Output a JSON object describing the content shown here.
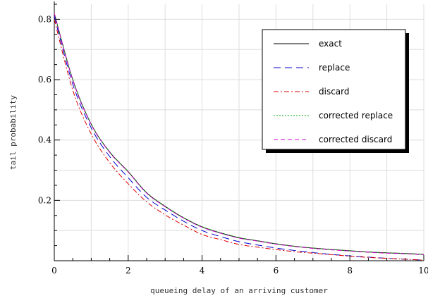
{
  "chart_data": {
    "type": "line",
    "title": "",
    "xlabel": "queueing delay of an arriving customer",
    "ylabel": "tail probability",
    "xlim": [
      0,
      10
    ],
    "ylim": [
      0,
      0.85
    ],
    "x_ticks": [
      0,
      2,
      4,
      6,
      8,
      10
    ],
    "y_ticks": [
      0.2,
      0.4,
      0.6,
      0.8
    ],
    "grid": true,
    "legend_position": "top-right",
    "x": [
      0,
      0.5,
      1,
      1.5,
      2,
      2.5,
      3,
      3.5,
      4,
      4.5,
      5,
      5.5,
      6,
      6.5,
      7,
      7.5,
      8,
      8.5,
      9,
      9.5,
      10
    ],
    "series": [
      {
        "name": "exact",
        "color": "#000000",
        "dash": "solid",
        "values": [
          0.82,
          0.6,
          0.452,
          0.36,
          0.295,
          0.225,
          0.18,
          0.142,
          0.112,
          0.092,
          0.076,
          0.066,
          0.056,
          0.048,
          0.042,
          0.037,
          0.033,
          0.029,
          0.026,
          0.024,
          0.021
        ]
      },
      {
        "name": "replace",
        "color": "#0000cc",
        "dash": "long-dash",
        "values": [
          0.81,
          0.585,
          0.44,
          0.345,
          0.275,
          0.21,
          0.168,
          0.131,
          0.1,
          0.08,
          0.063,
          0.052,
          0.042,
          0.034,
          0.027,
          0.021,
          0.016,
          0.012,
          0.008,
          0.005,
          0.002
        ]
      },
      {
        "name": "discard",
        "color": "#dd0000",
        "dash": "dash-dot",
        "values": [
          0.8,
          0.565,
          0.42,
          0.325,
          0.255,
          0.195,
          0.152,
          0.118,
          0.087,
          0.07,
          0.054,
          0.045,
          0.037,
          0.03,
          0.025,
          0.02,
          0.015,
          0.011,
          0.008,
          0.005,
          0.002
        ]
      },
      {
        "name": "corrected replace",
        "color": "#00aa00",
        "dash": "dotted",
        "values": [
          0.82,
          0.6,
          0.453,
          0.361,
          0.296,
          0.226,
          0.181,
          0.143,
          0.113,
          0.093,
          0.077,
          0.066,
          0.056,
          0.048,
          0.042,
          0.037,
          0.033,
          0.029,
          0.026,
          0.024,
          0.021
        ]
      },
      {
        "name": "corrected discard",
        "color": "#cc00cc",
        "dash": "short-dash",
        "values": [
          0.82,
          0.598,
          0.451,
          0.359,
          0.294,
          0.224,
          0.179,
          0.141,
          0.111,
          0.091,
          0.075,
          0.065,
          0.055,
          0.047,
          0.041,
          0.036,
          0.032,
          0.028,
          0.025,
          0.023,
          0.02
        ]
      }
    ]
  }
}
